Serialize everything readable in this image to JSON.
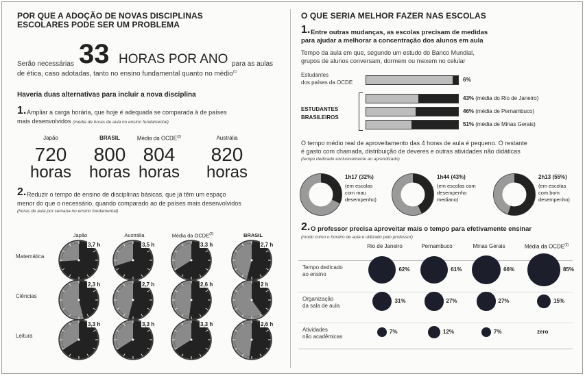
{
  "left": {
    "title_line1": "POR QUE A ADOÇÃO DE NOVAS DISCIPLINAS",
    "title_line2": "ESCOLARES PODE SER UM PROBLEMA",
    "lead_pre": "Serão necessárias",
    "lead_big": "33",
    "lead_hours": "HORAS POR ANO",
    "lead_post1": "para as aulas",
    "lead_line2": "de ética, caso adotadas, tanto no ensino fundamental quanto no médio",
    "lead_ref": "(1)",
    "alt_heading": "Haveria duas alternativas para incluir a nova disciplina",
    "alt1_num": "1.",
    "alt1_text1": "Ampliar a carga horária, que hoje é adequada se comparada à de países",
    "alt1_text2": "mais desenvolvidos",
    "alt1_note": "(média de horas de aula no ensino fundamental)",
    "hours_cols": [
      {
        "label": "Japão",
        "value": "720",
        "unit": "horas",
        "bold": false
      },
      {
        "label": "BRASIL",
        "value": "800",
        "unit": "horas",
        "bold": true
      },
      {
        "label": "Média da OCDE",
        "ref": "(2)",
        "value": "804",
        "unit": "horas",
        "bold": false
      },
      {
        "label": "Austrália",
        "value": "820",
        "unit": "horas",
        "bold": false
      }
    ],
    "alt2_num": "2.",
    "alt2_text1": "Reduzir o tempo de ensino de disciplinas básicas, que já têm um espaço",
    "alt2_text2": "menor do que o necessário, quando comparado ao de países mais desenvolvidos",
    "alt2_note": "(horas de aula por semana no ensino fundamental)",
    "clock_cols": [
      "Japão",
      "Austrália",
      "Média da OCDE",
      "BRASIL"
    ],
    "clock_ref": "(2)",
    "clock_rows": [
      {
        "label": "Matemática",
        "values": [
          "3,7 h",
          "3,5 h",
          "3,3 h",
          "2,7 h"
        ]
      },
      {
        "label": "Ciências",
        "values": [
          "2,3 h",
          "2,7 h",
          "2,6 h",
          "2 h"
        ]
      },
      {
        "label": "Leitura",
        "values": [
          "3,3 h",
          "3,3 h",
          "3,3 h",
          "2,6 h"
        ]
      }
    ]
  },
  "right": {
    "title": "O QUE SERIA MELHOR FAZER NAS ESCOLAS",
    "s1_num": "1.",
    "s1_text1": "Entre outras mudanças, as escolas precisam de medidas",
    "s1_text2": "para ajudar a melhorar a concentração dos alunos em aula",
    "s1_sub1": "Tempo da aula em que, segundo um estudo do Banco Mundial,",
    "s1_sub2": "grupos de alunos conversam, dormem ou mexem no celular",
    "ocde_label1": "Estudantes",
    "ocde_label2": "dos países da OCDE",
    "ocde_value": "6%",
    "ocde_pct": 6,
    "br_label1": "ESTUDANTES",
    "br_label2": "BRASILEIROS",
    "br_bars": [
      {
        "pct": 43,
        "value": "43%",
        "note": "(média do Rio de Janeiro)"
      },
      {
        "pct": 46,
        "value": "46%",
        "note": "(média de Pernambuco)"
      },
      {
        "pct": 51,
        "value": "51%",
        "note": "(média de Minas Gerais)"
      }
    ],
    "p1": "O tempo médio real de aproveitamento das 4 horas de aula é pequeno. O restante",
    "p2": "é gasto com chamada, distribuição de deveres e outras atividades não didáticas",
    "p_note": "(tempo dedicado exclusivamente ao aprendizado)",
    "donuts": [
      {
        "pct": 32,
        "time": "1h17 (32%)",
        "l1": "(em escolas",
        "l2": "com mau",
        "l3": "desempenho)"
      },
      {
        "pct": 43,
        "time": "1h44 (43%)",
        "l1": "(em escolas com",
        "l2": "desempenho",
        "l3": "mediano)"
      },
      {
        "pct": 55,
        "time": "2h13 (55%)",
        "l1": "(em escolas",
        "l2": "com bom",
        "l3": "desempenho)"
      }
    ],
    "s2_num": "2.",
    "s2_text": "O professor precisa aproveitar mais o tempo para efetivamente ensinar",
    "s2_note": "(modo como o horário de aula é utilizado pelo professor)",
    "col_heads": [
      "Rio de Janeiro",
      "Pernambuco",
      "Minas Gerais",
      "Média da OCDE"
    ],
    "col_ref": "(2)",
    "bubble_rows": [
      {
        "l1": "Tempo dedicado",
        "l2": "ao ensino",
        "vals": [
          "62%",
          "61%",
          "66%",
          "85%"
        ],
        "nums": [
          62,
          61,
          66,
          85
        ]
      },
      {
        "l1": "Organização",
        "l2": "da sala de aula",
        "vals": [
          "31%",
          "27%",
          "27%",
          "15%"
        ],
        "nums": [
          31,
          27,
          27,
          15
        ]
      },
      {
        "l1": "Atividades",
        "l2": "não acadêmicas",
        "vals": [
          "7%",
          "12%",
          "7%",
          "zero"
        ],
        "nums": [
          7,
          12,
          7,
          0
        ]
      }
    ]
  }
}
